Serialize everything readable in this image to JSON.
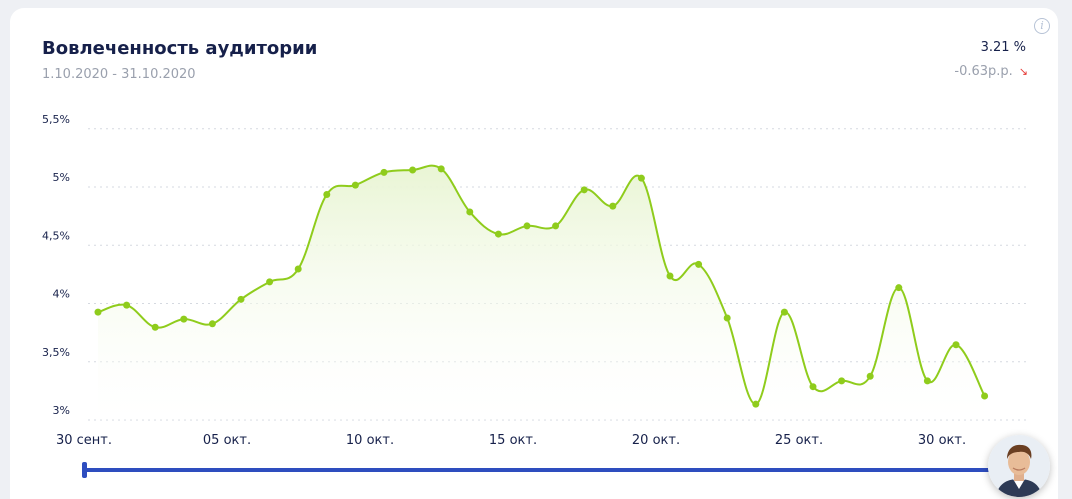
{
  "header": {
    "title": "Вовлеченность аудитории",
    "period": "1.10.2020 - 31.10.2020",
    "metric_value": "3.21 %",
    "metric_change": "-0.63р.р.",
    "info_icon": "info-icon",
    "change_icon": "down-right-arrow-icon"
  },
  "colors": {
    "line": "#8fcc1c",
    "fill": "#f1f8e4",
    "slider": "#2e4dbf",
    "grid": "#d5d9e0",
    "title": "#16204a",
    "muted": "#9aa0ad",
    "negative": "#e53935"
  },
  "chart_data": {
    "type": "area",
    "title": "Вовлеченность аудитории",
    "xlabel": "",
    "ylabel": "",
    "ylim": [
      2.95,
      5.5
    ],
    "yticks": [
      3,
      3.5,
      4,
      4.5,
      5,
      5.5
    ],
    "ytick_labels": [
      "3%",
      "3,5%",
      "4%",
      "4,5%",
      "5%",
      "5,5%"
    ],
    "xticks": [
      {
        "day": 0,
        "label": "30 сент."
      },
      {
        "day": 5,
        "label": "05 окт."
      },
      {
        "day": 10,
        "label": "10 окт."
      },
      {
        "day": 15,
        "label": "15 окт."
      },
      {
        "day": 20,
        "label": "20 окт."
      },
      {
        "day": 25,
        "label": "25 окт."
      },
      {
        "day": 30,
        "label": "30 окт."
      }
    ],
    "grid": true,
    "series": [
      {
        "name": "",
        "x": [
          0,
          1,
          2,
          3,
          4,
          5,
          6,
          7,
          8,
          9,
          10,
          11,
          12,
          13,
          14,
          15,
          16,
          17,
          18,
          19,
          20,
          21,
          22,
          23,
          24,
          25,
          26,
          27,
          28,
          29,
          30,
          31
        ],
        "values": [
          3.84,
          3.9,
          3.71,
          3.78,
          3.74,
          3.95,
          4.1,
          4.21,
          4.85,
          4.93,
          5.04,
          5.06,
          5.07,
          4.7,
          4.51,
          4.58,
          4.58,
          4.89,
          4.75,
          4.99,
          4.15,
          4.25,
          3.79,
          3.05,
          3.84,
          3.2,
          3.25,
          3.29,
          4.05,
          3.25,
          3.56,
          3.12
        ],
        "values_tail": 3.21
      }
    ]
  }
}
